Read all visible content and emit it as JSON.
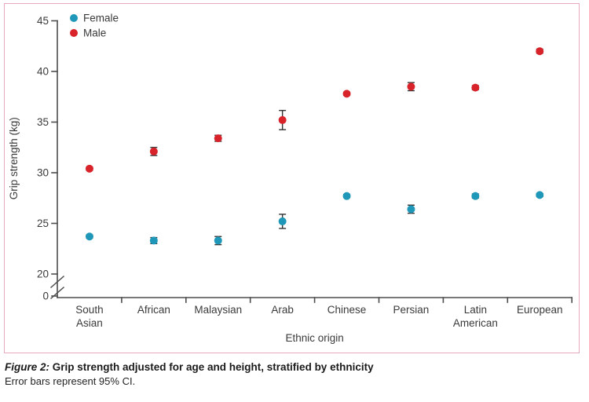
{
  "figure": {
    "caption_label": "Figure 2:",
    "caption_title": "Grip strength adjusted for age and height, stratified by ethnicity",
    "caption_note": "Error bars represent 95% CI."
  },
  "chart_data": {
    "type": "scatter",
    "title": "",
    "xlabel": "Ethnic origin",
    "ylabel": "Grip strength (kg)",
    "categories": [
      "South Asian",
      "African",
      "Malaysian",
      "Arab",
      "Chinese",
      "Persian",
      "Latin American",
      "European"
    ],
    "y_ticks": [
      45,
      40,
      35,
      30,
      25,
      20
    ],
    "y_zero_label": "0",
    "y_axis_break": true,
    "ylim_display": [
      20,
      45
    ],
    "grid": false,
    "legend_position": "top-left",
    "series": [
      {
        "name": "Female",
        "color": "#1e97b8",
        "values": [
          23.7,
          23.3,
          23.3,
          25.2,
          27.7,
          26.4,
          27.7,
          27.8
        ],
        "ci": [
          0.15,
          0.3,
          0.4,
          0.7,
          0.15,
          0.4,
          0.2,
          0.15
        ]
      },
      {
        "name": "Male",
        "color": "#d8232a",
        "values": [
          30.4,
          32.1,
          33.4,
          35.2,
          37.8,
          38.5,
          38.4,
          42.0
        ],
        "ci": [
          0.15,
          0.4,
          0.3,
          0.95,
          0.15,
          0.4,
          0.2,
          0.2
        ]
      }
    ]
  },
  "colors": {
    "frame_border": "#e7aabe",
    "axis": "#4d4d4d",
    "text": "#3a3a3a",
    "error_bar": "#333333"
  }
}
